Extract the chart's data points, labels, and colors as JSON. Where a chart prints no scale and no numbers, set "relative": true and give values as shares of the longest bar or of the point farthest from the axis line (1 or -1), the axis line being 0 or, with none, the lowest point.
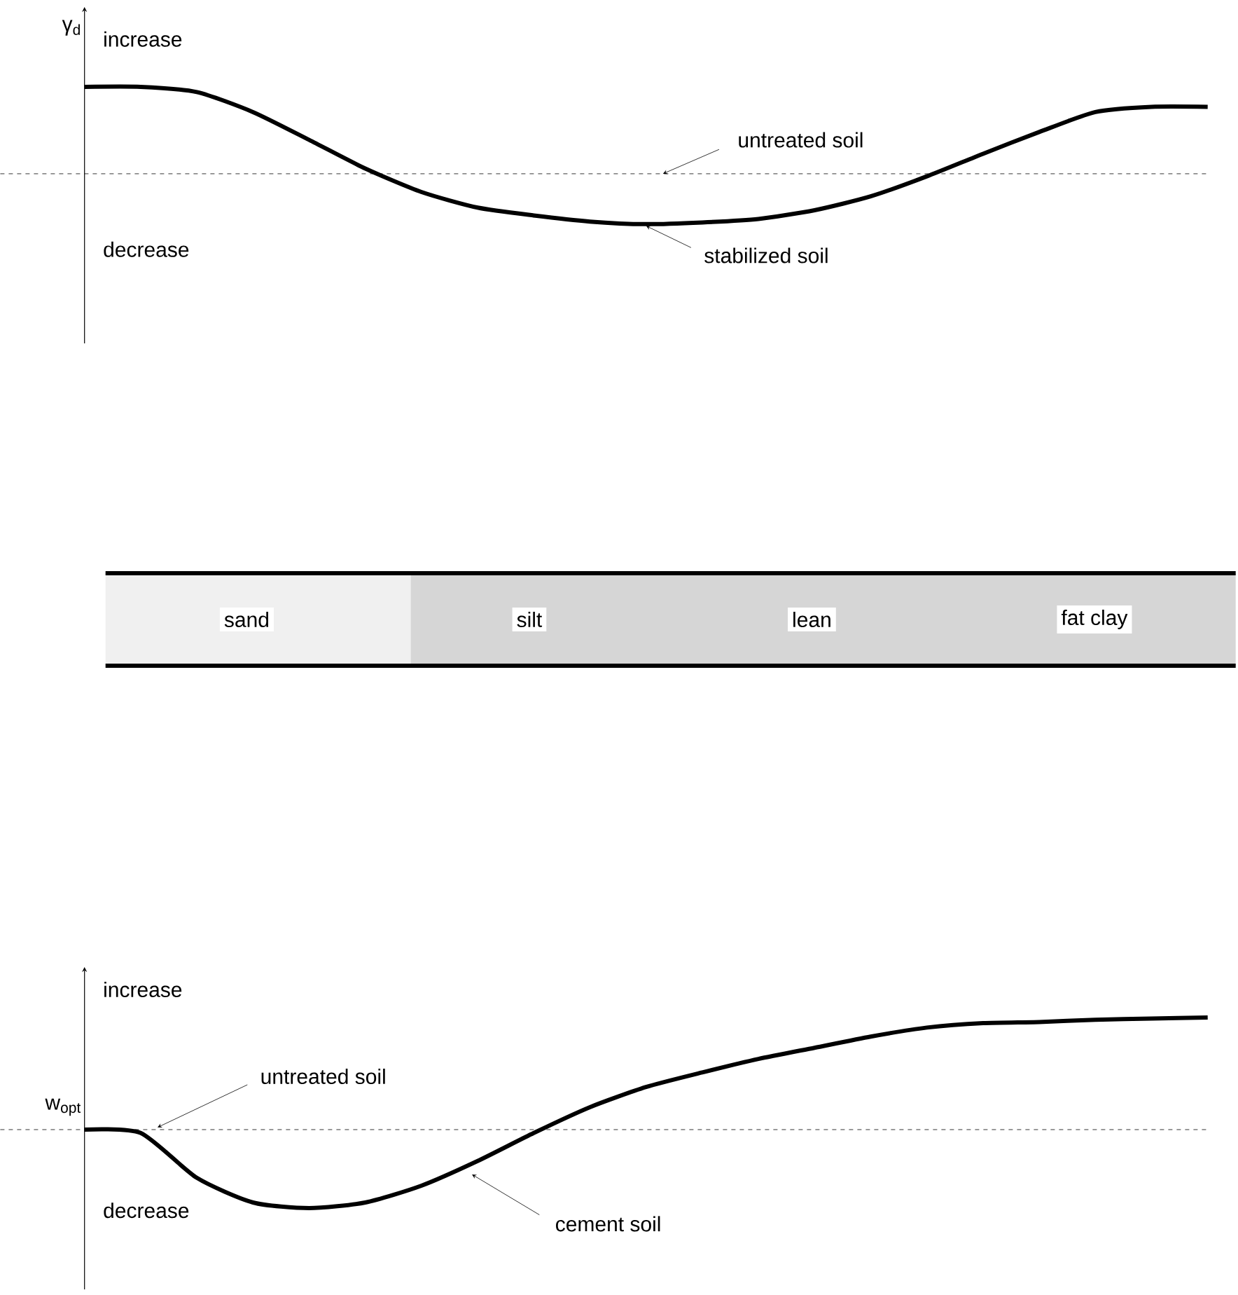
{
  "chart_data": [
    {
      "type": "line",
      "relative": true,
      "ylabel": "γ$_{d}$",
      "marker": "none",
      "categories": [
        null,
        null,
        null,
        null,
        null,
        null,
        null,
        null,
        null,
        null,
        null,
        null,
        null,
        null,
        null,
        null,
        null,
        null,
        null,
        null,
        null
      ],
      "series": [
        {
          "name": "stabilized soil",
          "color": "#000000",
          "values": [
            1,
            1,
            0.94,
            0.71,
            0.39,
            0.06,
            -0.21,
            -0.39,
            -0.48,
            -0.55,
            -0.58,
            -0.56,
            -0.52,
            -0.42,
            -0.26,
            -0.03,
            0.23,
            0.48,
            0.71,
            0.77,
            0.77
          ]
        }
      ],
      "ref_lines": [
        {
          "axis": "y",
          "value": 0,
          "label": "untreated soil",
          "line_style": "dashed"
        }
      ],
      "annotations": [
        "increase",
        "decrease"
      ]
    },
    {
      "type": "other",
      "annotations": [
        "sand",
        "silt",
        "lean",
        "fat clay"
      ]
    },
    {
      "type": "line",
      "relative": true,
      "ylabel": "w$_{opt}$",
      "marker": "none",
      "categories": [
        null,
        null,
        null,
        null,
        null,
        null,
        null,
        null,
        null,
        null,
        null,
        null,
        null,
        null,
        null,
        null,
        null,
        null,
        null,
        null,
        null
      ],
      "series": [
        {
          "name": "cement soil",
          "color": "#000000",
          "values": [
            0,
            -0.03,
            -0.43,
            -0.65,
            -0.7,
            -0.65,
            -0.5,
            -0.28,
            -0.03,
            0.2,
            0.38,
            0.51,
            0.63,
            0.73,
            0.83,
            0.91,
            0.95,
            0.96,
            0.98,
            0.99,
            1
          ]
        }
      ],
      "ref_lines": [
        {
          "axis": "y",
          "value": 0,
          "label": "untreated soil",
          "line_style": "dashed"
        }
      ],
      "annotations": [
        "increase",
        "decrease"
      ]
    }
  ]
}
